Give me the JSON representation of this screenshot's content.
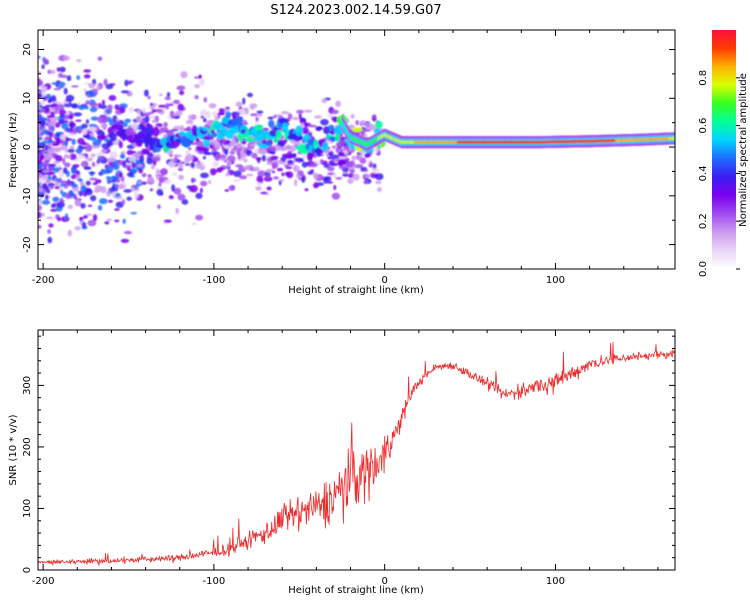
{
  "title": "S124.2023.002.14.59.G07",
  "colors": {
    "snr_line": "#ee2a2a",
    "colormap": [
      "#ffffff",
      "#ead6f7",
      "#cc9bf0",
      "#a24cf0",
      "#7a00ee",
      "#3a1cf2",
      "#1f6cff",
      "#00d2ff",
      "#00ff9c",
      "#33ff22",
      "#d8ff00",
      "#ffb300",
      "#ff3b00",
      "#ff0f3c"
    ]
  },
  "chart_data": [
    {
      "type": "heatmap",
      "name": "spectrogram",
      "xlabel": "Height of straight line (km)",
      "ylabel": "Frequency (Hz)",
      "xlim": [
        -203,
        170
      ],
      "ylim": [
        -25,
        24
      ],
      "xticks": [
        -200,
        -100,
        0,
        100
      ],
      "yticks": [
        20,
        10,
        0,
        -10,
        -20
      ],
      "colorbar": {
        "label": "Normalized spectral amplitude",
        "range": [
          0,
          1
        ],
        "ticks": [
          0.0,
          0.2,
          0.4,
          0.6,
          0.8
        ]
      },
      "ridge": [
        {
          "x": -160,
          "f": 3.0,
          "amp": 0.35
        },
        {
          "x": -140,
          "f": 2.0,
          "amp": 0.4
        },
        {
          "x": -125,
          "f": 1.0,
          "amp": 0.55
        },
        {
          "x": -110,
          "f": 2.5,
          "amp": 0.45
        },
        {
          "x": -100,
          "f": 3.5,
          "amp": 0.55
        },
        {
          "x": -90,
          "f": 5.0,
          "amp": 0.5
        },
        {
          "x": -80,
          "f": 3.0,
          "amp": 0.55
        },
        {
          "x": -70,
          "f": 2.0,
          "amp": 0.5
        },
        {
          "x": -60,
          "f": 4.0,
          "amp": 0.55
        },
        {
          "x": -50,
          "f": 1.0,
          "amp": 0.55
        },
        {
          "x": -40,
          "f": 0.0,
          "amp": 0.5
        },
        {
          "x": -30,
          "f": 3.0,
          "amp": 0.55
        },
        {
          "x": -25,
          "f": 5.0,
          "amp": 0.6
        },
        {
          "x": -20,
          "f": 2.0,
          "amp": 0.65
        },
        {
          "x": -10,
          "f": 0.5,
          "amp": 0.7
        },
        {
          "x": 0,
          "f": 2.5,
          "amp": 0.75
        },
        {
          "x": 10,
          "f": 1.0,
          "amp": 0.78
        },
        {
          "x": 30,
          "f": 1.0,
          "amp": 0.85
        },
        {
          "x": 60,
          "f": 1.0,
          "amp": 0.93
        },
        {
          "x": 90,
          "f": 1.0,
          "amp": 0.95
        },
        {
          "x": 120,
          "f": 1.2,
          "amp": 0.92
        },
        {
          "x": 150,
          "f": 1.5,
          "amp": 0.85
        },
        {
          "x": 170,
          "f": 1.8,
          "amp": 0.8
        }
      ]
    },
    {
      "type": "line",
      "name": "snr",
      "xlabel": "Height of straight line (km)",
      "ylabel": "SNR (10 * v/v)",
      "xlim": [
        -203,
        170
      ],
      "ylim": [
        0,
        390
      ],
      "xticks": [
        -200,
        -100,
        0,
        100
      ],
      "yticks": [
        0,
        100,
        200,
        300
      ],
      "series": [
        {
          "x": [
            -203,
            -180,
            -160,
            -140,
            -120,
            -100,
            -90,
            -80,
            -70,
            -60,
            -50,
            -40,
            -30,
            -20,
            -10,
            0,
            5,
            10,
            15,
            20,
            25,
            30,
            40,
            50,
            60,
            70,
            80,
            90,
            100,
            110,
            120,
            140,
            160,
            170
          ],
          "y": [
            12,
            14,
            15,
            17,
            20,
            28,
            35,
            48,
            60,
            80,
            95,
            100,
            120,
            150,
            160,
            190,
            215,
            245,
            285,
            305,
            318,
            330,
            333,
            318,
            302,
            285,
            290,
            300,
            305,
            320,
            335,
            345,
            350,
            352
          ],
          "noise": [
            5,
            6,
            6,
            7,
            8,
            12,
            15,
            20,
            28,
            35,
            40,
            45,
            60,
            80,
            70,
            50,
            35,
            25,
            15,
            12,
            10,
            10,
            10,
            12,
            15,
            15,
            18,
            18,
            20,
            20,
            15,
            12,
            10,
            10
          ]
        }
      ]
    }
  ]
}
